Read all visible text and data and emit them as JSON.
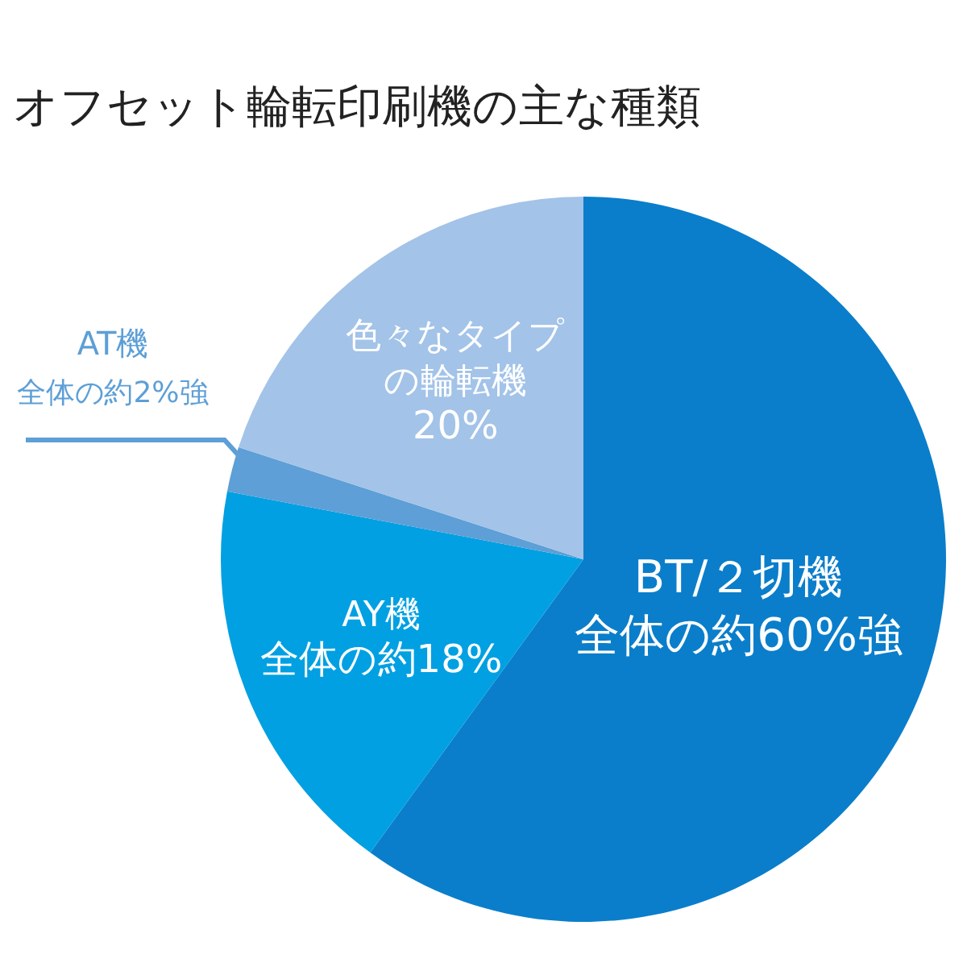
{
  "chart_data": {
    "type": "pie",
    "title": "オフセット輪転印刷機の主な種類",
    "categories": [
      "BT/２切機",
      "AY機",
      "AT機",
      "色々なタイプの輪転機"
    ],
    "values": [
      60,
      18,
      2,
      20
    ],
    "value_labels": [
      "全体の約60%強",
      "全体の約18%",
      "全体の約2%強",
      "20%"
    ],
    "colors": [
      "#0a7ecb",
      "#00a0e2",
      "#5d9fd6",
      "#a3c3e8"
    ],
    "legend": false
  }
}
